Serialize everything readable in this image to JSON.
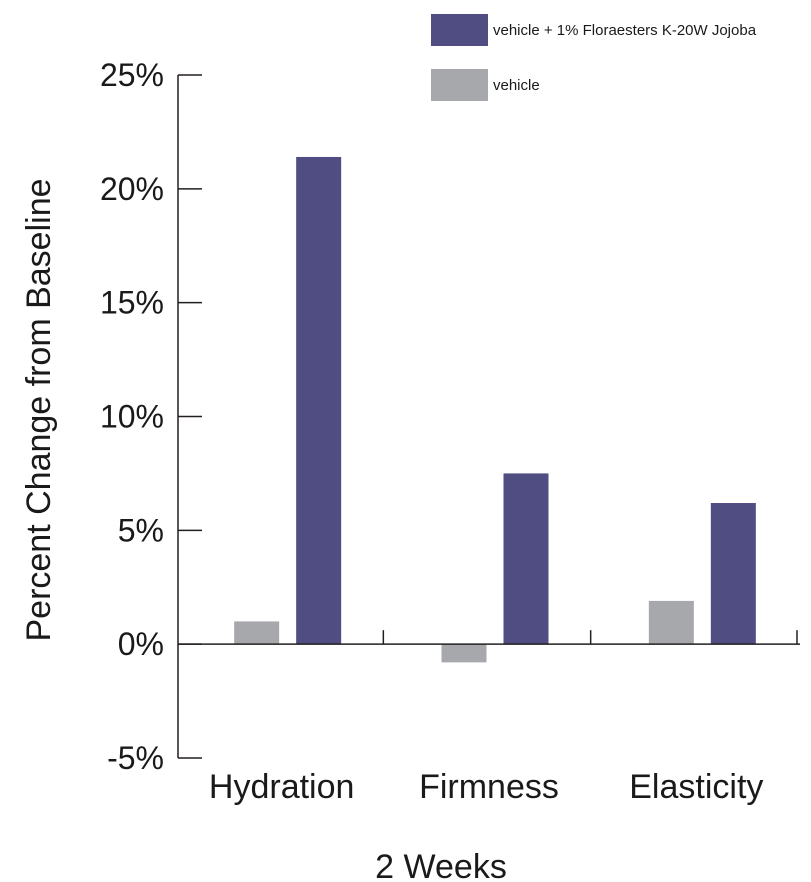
{
  "chart_data": {
    "type": "bar",
    "title": "",
    "xlabel": "2 Weeks",
    "ylabel": "Percent Change from Baseline",
    "ylim": [
      -5,
      25
    ],
    "yticks": [
      -5,
      0,
      5,
      10,
      15,
      20,
      25
    ],
    "ytick_labels": [
      "-5%",
      "0%",
      "5%",
      "10%",
      "15%",
      "20%",
      "25%"
    ],
    "categories": [
      "Hydration",
      "Firmness",
      "Elasticity"
    ],
    "series": [
      {
        "name": "vehicle",
        "color": "#a7a8ab",
        "values": [
          1.0,
          -0.8,
          1.9
        ]
      },
      {
        "name": "vehicle + 1% Floraesters K-20W Jojoba",
        "color": "#4f4d82",
        "values": [
          21.4,
          7.5,
          6.2
        ]
      }
    ],
    "legend_order": [
      1,
      0
    ],
    "legend_position": "top-right",
    "grid": false
  }
}
